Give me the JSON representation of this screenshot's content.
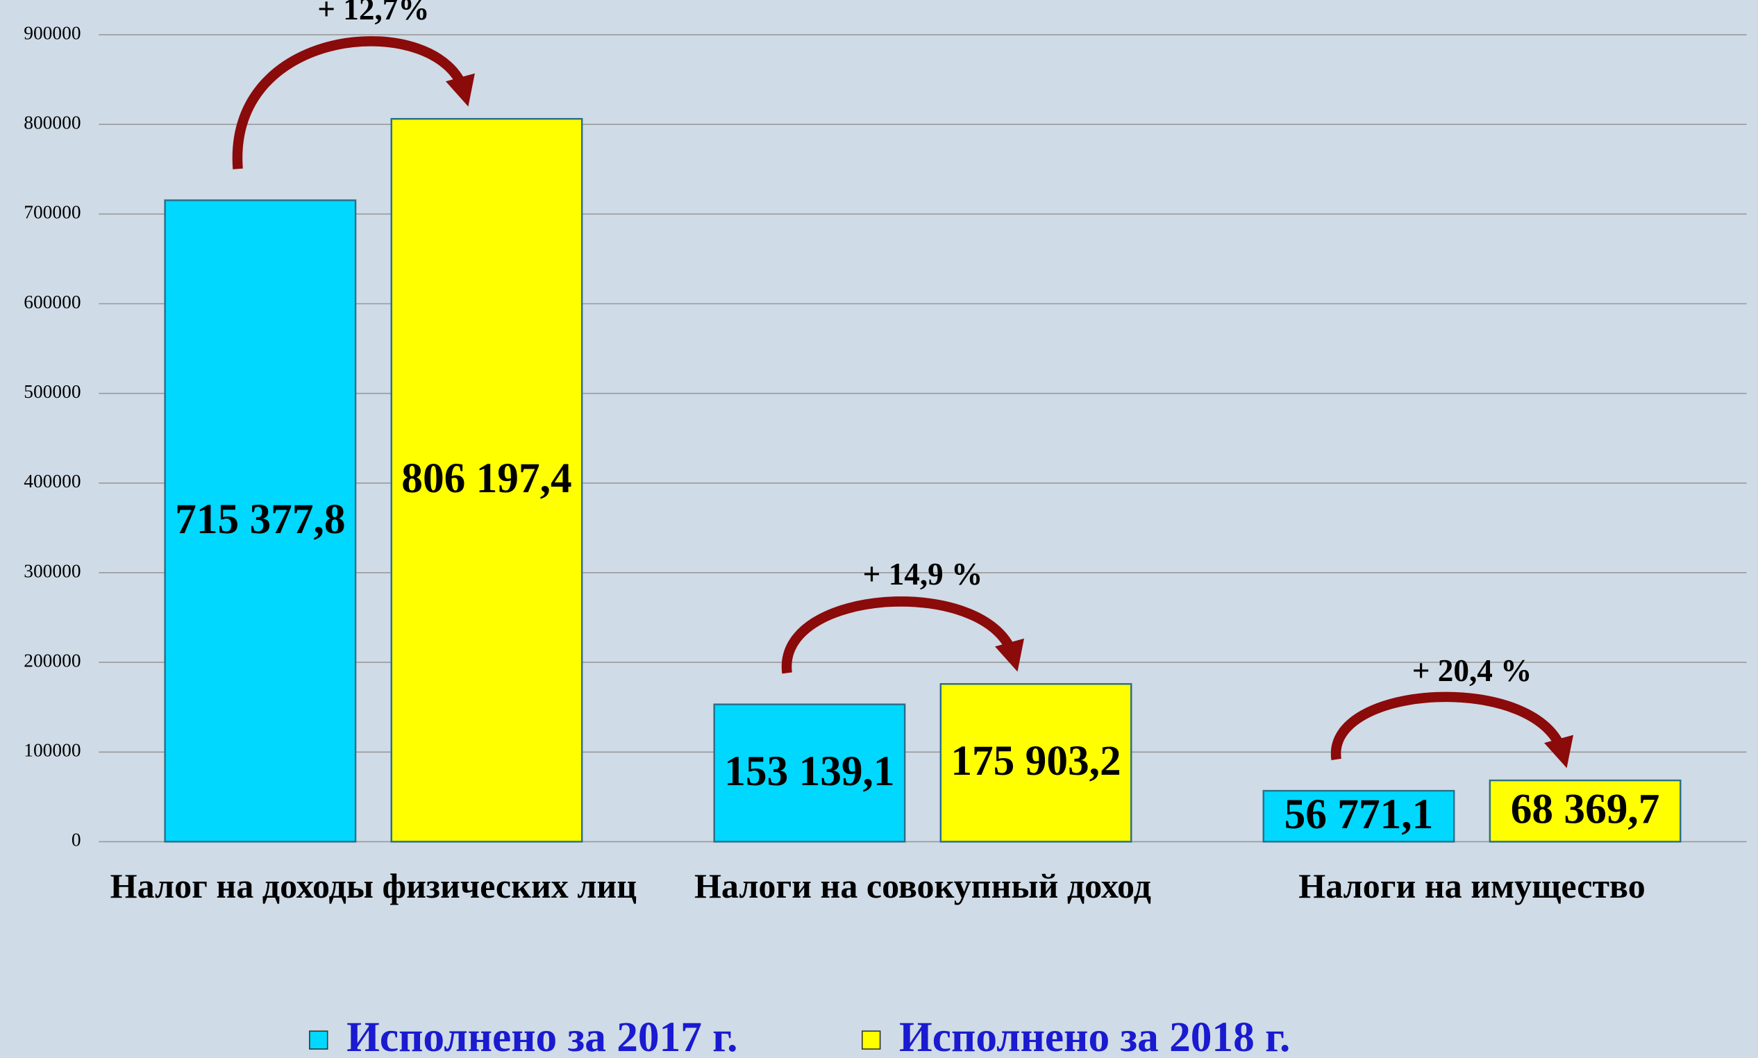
{
  "chart_data": {
    "type": "bar",
    "categories": [
      "Налог на доходы физических лиц",
      "Налоги на совокупный доход",
      "Налоги на имущество"
    ],
    "series": [
      {
        "name": "Исполнено за 2017 г.",
        "color": "#00d8ff",
        "values": [
          715377.8,
          153139.1,
          56771.1
        ],
        "value_labels": [
          "715 377,8",
          "153 139,1",
          "56 771,1"
        ]
      },
      {
        "name": "Исполнено за 2018 г.",
        "color": "#ffff00",
        "values": [
          806197.4,
          175903.2,
          68369.7
        ],
        "value_labels": [
          "806 197,4",
          "175 903,2",
          "68 369,7"
        ]
      }
    ],
    "annotations": [
      "+ 12,7%",
      "+ 14,9 %",
      "+ 20,4 %"
    ],
    "ylim": [
      0,
      900000
    ],
    "yticks": [
      0,
      100000,
      200000,
      300000,
      400000,
      500000,
      600000,
      700000,
      800000,
      900000
    ],
    "grid": true,
    "legend": "bottom"
  }
}
